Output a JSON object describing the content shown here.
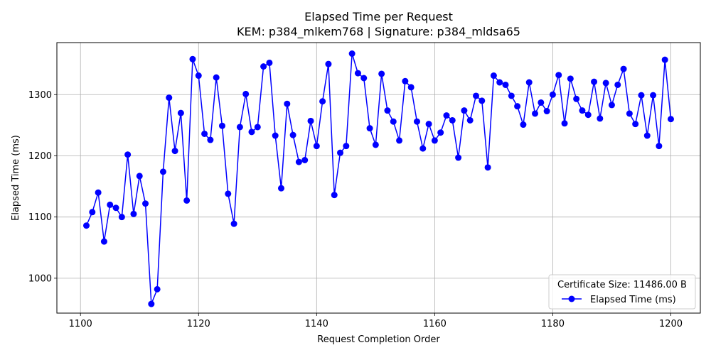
{
  "chart_data": {
    "type": "line",
    "title": "Elapsed Time per Request",
    "subtitle": "KEM: p384_mlkem768 | Signature: p384_mldsa65",
    "xlabel": "Request Completion Order",
    "ylabel": "Elapsed Time (ms)",
    "xlim": [
      1096,
      1205
    ],
    "ylim": [
      943,
      1385
    ],
    "xticks": [
      1100,
      1120,
      1140,
      1160,
      1180,
      1200
    ],
    "yticks": [
      1000,
      1100,
      1200,
      1300
    ],
    "grid": true,
    "legend": {
      "title": "Certificate Size: 11486.00 B",
      "placement": "lower-right"
    },
    "colors": {
      "series": "#0000ff",
      "grid": "#b0b0b0",
      "axes": "#000000"
    },
    "series": [
      {
        "name": "Elapsed Time (ms)",
        "marker": "circle",
        "x": [
          1101,
          1102,
          1103,
          1104,
          1105,
          1106,
          1107,
          1108,
          1109,
          1110,
          1111,
          1112,
          1113,
          1114,
          1115,
          1116,
          1117,
          1118,
          1119,
          1120,
          1121,
          1122,
          1123,
          1124,
          1125,
          1126,
          1127,
          1128,
          1129,
          1130,
          1131,
          1132,
          1133,
          1134,
          1135,
          1136,
          1137,
          1138,
          1139,
          1140,
          1141,
          1142,
          1143,
          1144,
          1145,
          1146,
          1147,
          1148,
          1149,
          1150,
          1151,
          1152,
          1153,
          1154,
          1155,
          1156,
          1157,
          1158,
          1159,
          1160,
          1161,
          1162,
          1163,
          1164,
          1165,
          1166,
          1167,
          1168,
          1169,
          1170,
          1171,
          1172,
          1173,
          1174,
          1175,
          1176,
          1177,
          1178,
          1179,
          1180,
          1181,
          1182,
          1183,
          1184,
          1185,
          1186,
          1187,
          1188,
          1189,
          1190,
          1191,
          1192,
          1193,
          1194,
          1195,
          1196,
          1197,
          1198,
          1199,
          1200
        ],
        "y": [
          1086,
          1108,
          1140,
          1060,
          1120,
          1115,
          1100,
          1202,
          1105,
          1167,
          1122,
          958,
          982,
          1174,
          1295,
          1208,
          1270,
          1127,
          1358,
          1331,
          1236,
          1226,
          1328,
          1249,
          1138,
          1089,
          1247,
          1301,
          1239,
          1247,
          1346,
          1352,
          1233,
          1147,
          1285,
          1234,
          1190,
          1193,
          1257,
          1216,
          1289,
          1350,
          1136,
          1205,
          1216,
          1367,
          1335,
          1327,
          1245,
          1218,
          1334,
          1274,
          1256,
          1225,
          1322,
          1312,
          1256,
          1212,
          1252,
          1225,
          1238,
          1266,
          1258,
          1197,
          1274,
          1258,
          1298,
          1290,
          1181,
          1331,
          1320,
          1316,
          1298,
          1281,
          1251,
          1320,
          1269,
          1287,
          1273,
          1300,
          1332,
          1253,
          1326,
          1293,
          1274,
          1267,
          1321,
          1261,
          1319,
          1283,
          1316,
          1342,
          1269,
          1252,
          1299,
          1233,
          1299,
          1216,
          1357,
          1260
        ]
      }
    ]
  }
}
